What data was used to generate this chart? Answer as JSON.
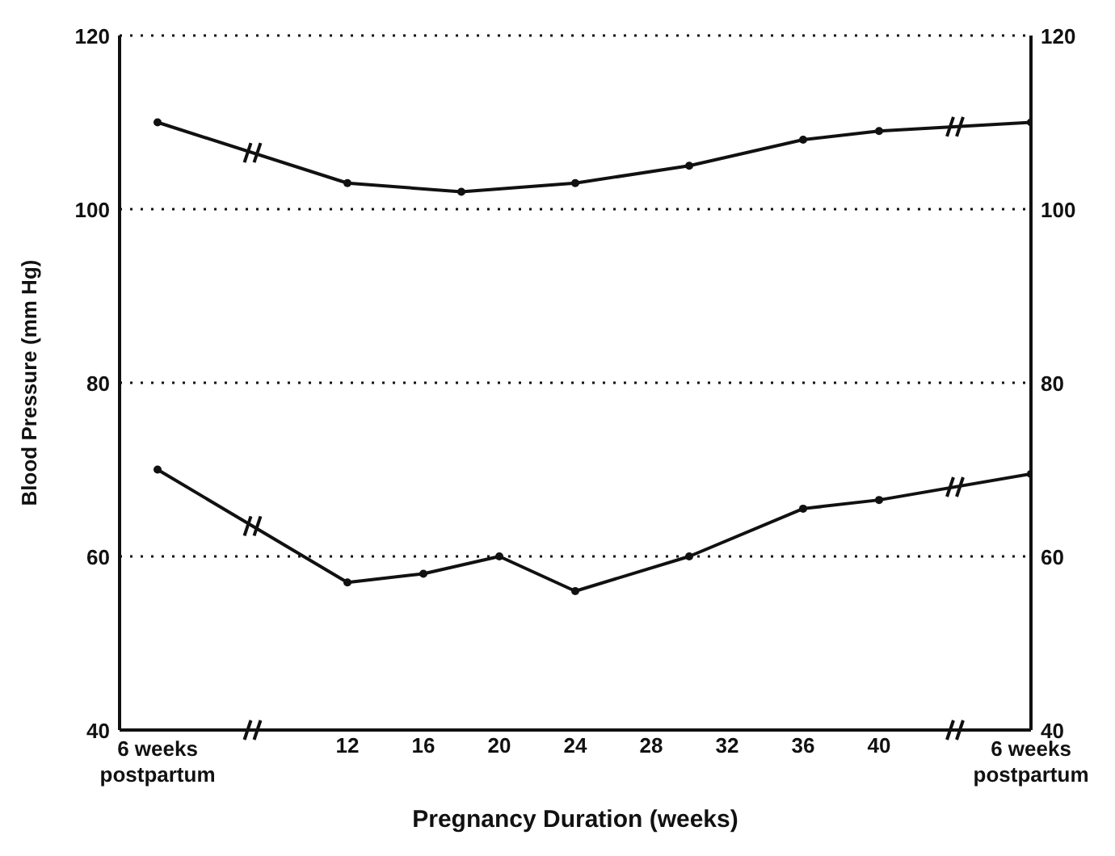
{
  "chart_data": {
    "type": "line",
    "xlabel": "Pregnancy Duration (weeks)",
    "ylabel": "Blood Pressure (mm Hg)",
    "xlim": [
      0,
      48
    ],
    "xticks": [
      12,
      16,
      20,
      24,
      28,
      32,
      36,
      40
    ],
    "annotations": [
      "6 weeks postpartum",
      "6 weeks postpartum"
    ],
    "ylim": [
      40,
      120
    ],
    "yticks": [
      40,
      60,
      80,
      100,
      120
    ],
    "y2lim": [
      40,
      120
    ],
    "y2ticks": [
      40,
      60,
      80,
      100,
      120
    ],
    "grid": "y",
    "marker": "circle",
    "line_style": "solid",
    "series": [
      {
        "color": "#111111",
        "x": [
          2,
          12,
          18,
          24,
          30,
          36,
          40,
          48
        ],
        "values": [
          110,
          103,
          102,
          103,
          105,
          108,
          109,
          110
        ]
      },
      {
        "color": "#111111",
        "x": [
          2,
          12,
          16,
          20,
          24,
          30,
          36,
          40,
          48
        ],
        "values": [
          70,
          57,
          58,
          60,
          56,
          60,
          65.5,
          66.5,
          69.5
        ]
      }
    ]
  }
}
